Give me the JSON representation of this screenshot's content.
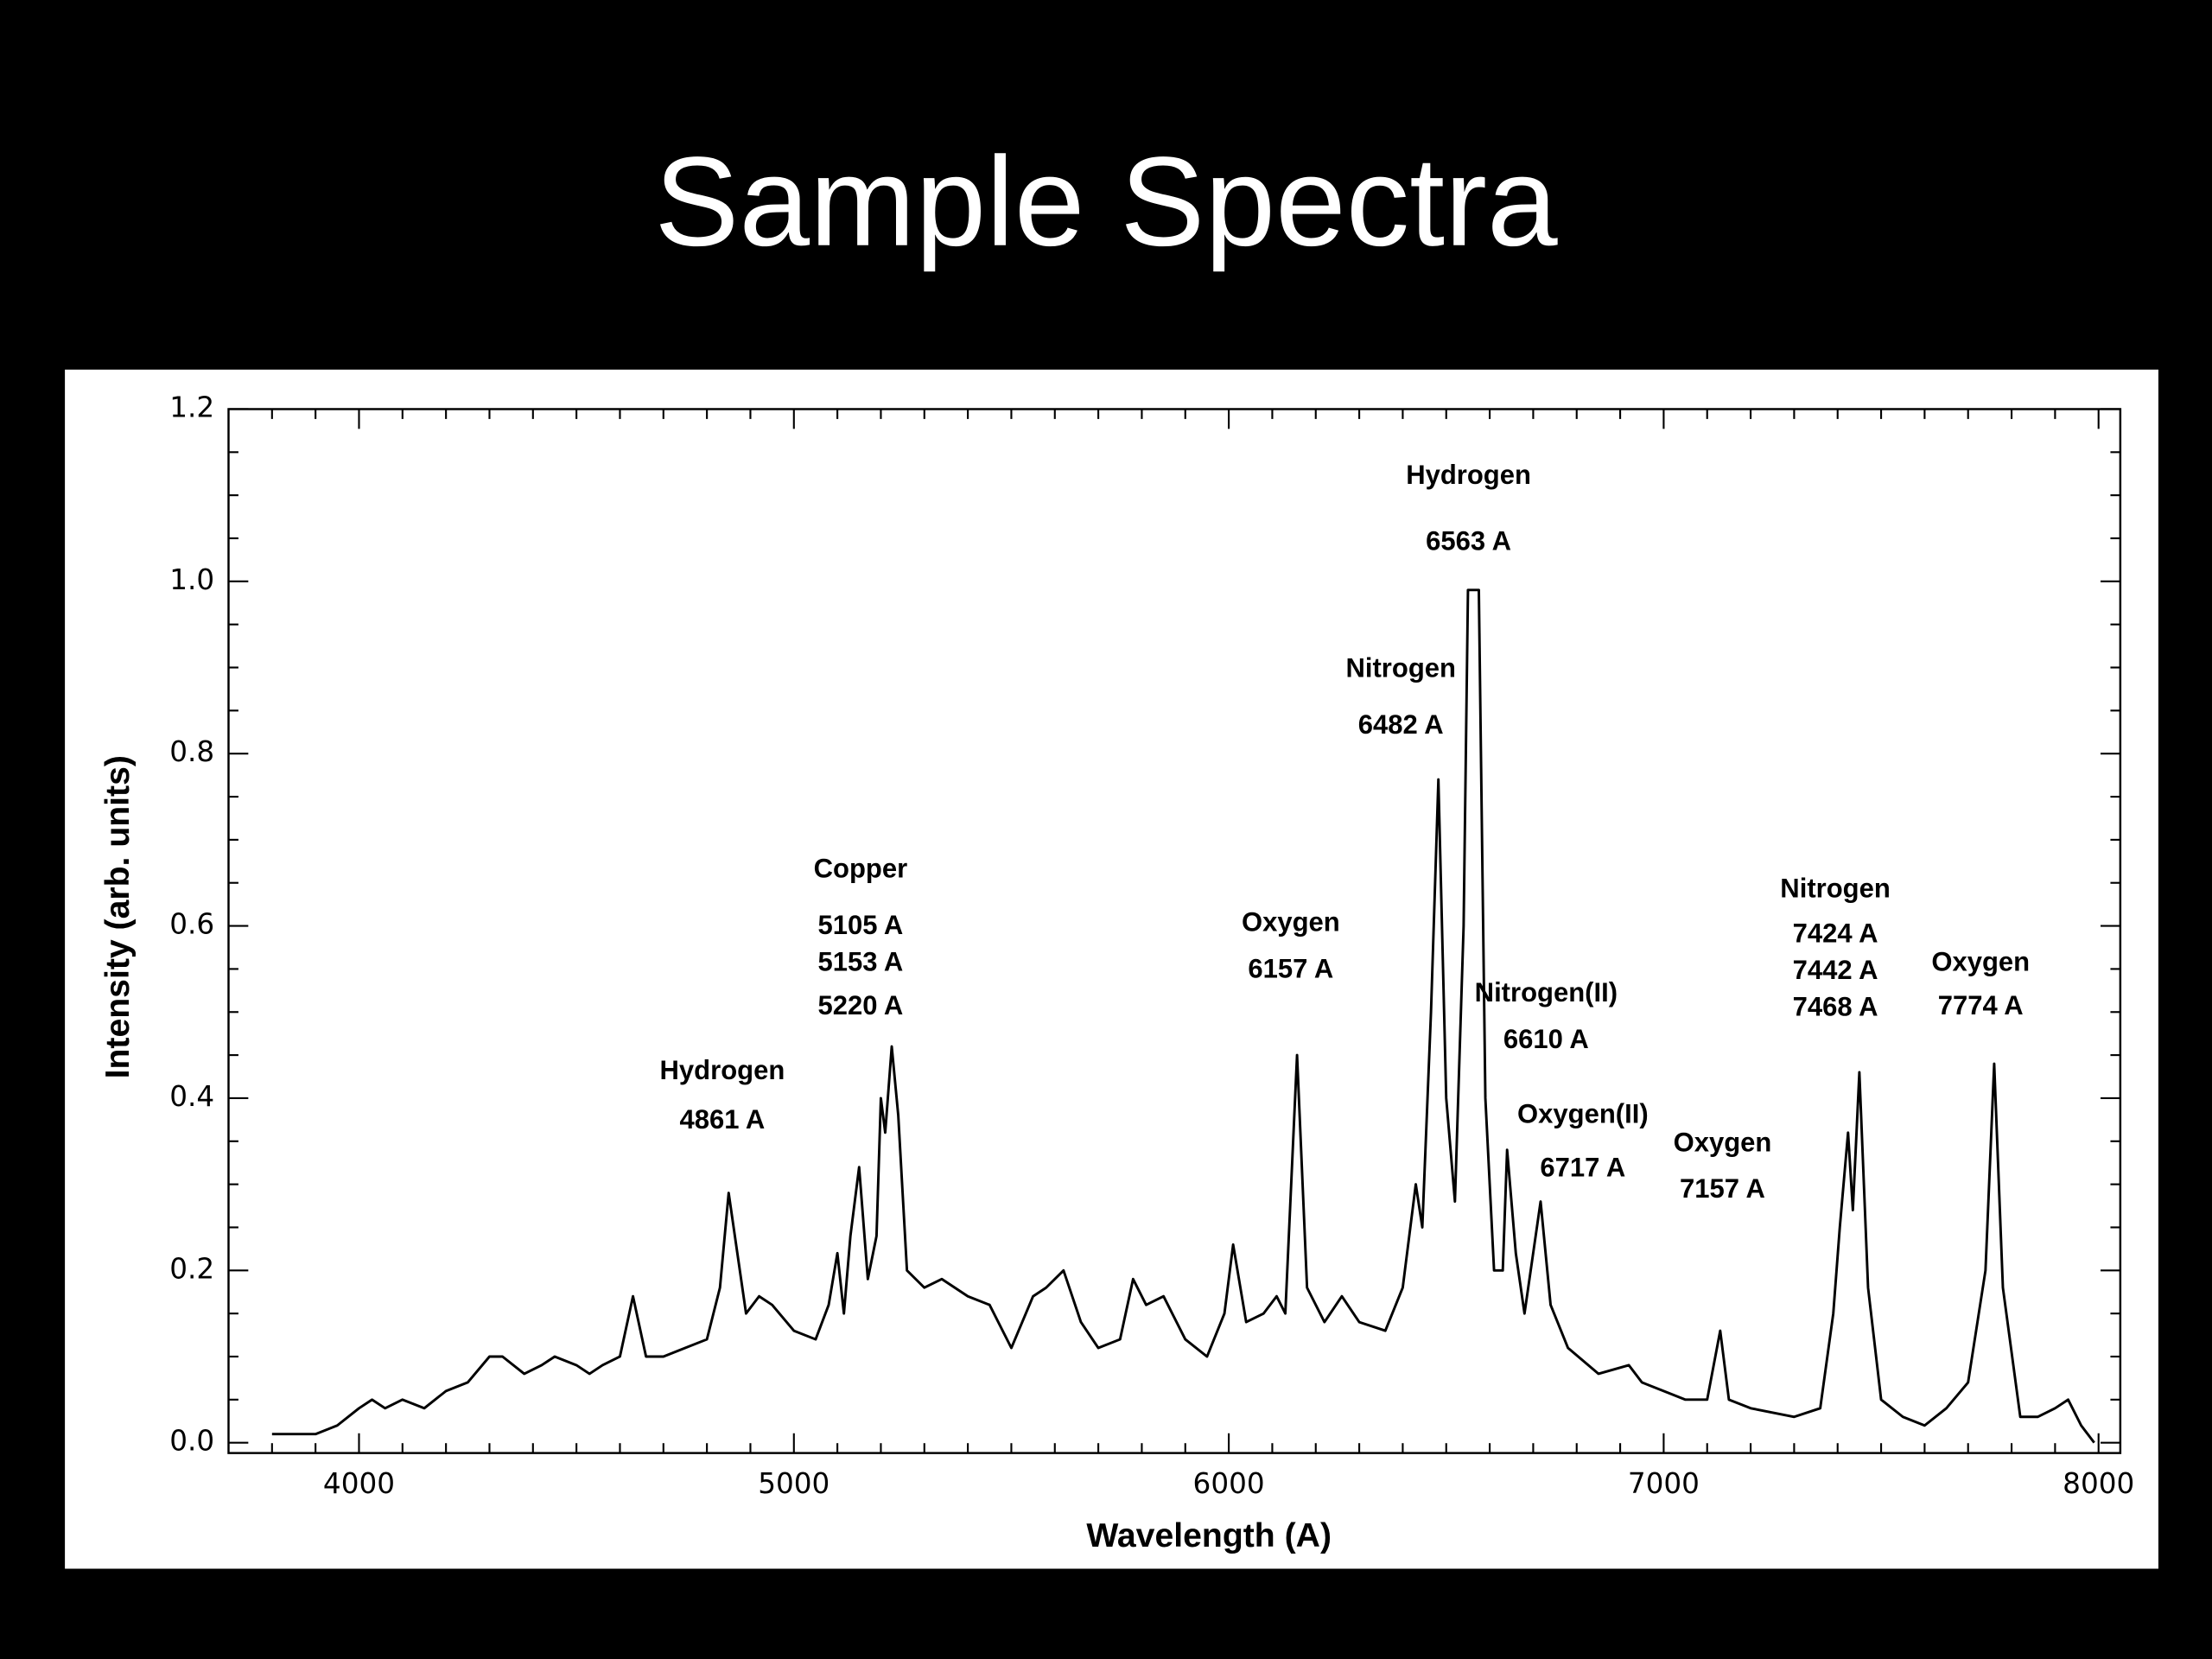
{
  "chart_data": {
    "type": "line",
    "title": "Sample Spectra",
    "xlabel": "Wavelength (A)",
    "ylabel": "Intensity (arb. units)",
    "color": "#000000",
    "xlim": [
      3700,
      8050
    ],
    "ylim": [
      -0.012,
      1.2
    ],
    "xticks": [
      4000,
      5000,
      6000,
      7000,
      8000
    ],
    "yticks": [
      {
        "value": 0,
        "label": "0.0"
      },
      0.2,
      0.4,
      0.6,
      0.8,
      {
        "value": 1,
        "label": "1.0"
      },
      1.2
    ],
    "xticks_minor": [
      3800,
      3900,
      4100,
      4200,
      4300,
      4400,
      4500,
      4600,
      4700,
      4800,
      4900,
      5100,
      5200,
      5300,
      5400,
      5500,
      5600,
      5700,
      5800,
      5900,
      6100,
      6200,
      6300,
      6400,
      6500,
      6600,
      6700,
      6800,
      6900,
      7100,
      7200,
      7300,
      7400,
      7500,
      7600,
      7700,
      7800,
      7900
    ],
    "yticks_minor": [
      0.05,
      0.1,
      0.15,
      0.25,
      0.3,
      0.35,
      0.45,
      0.5,
      0.55,
      0.65,
      0.7,
      0.75,
      0.85,
      0.9,
      0.95,
      1.05,
      1.1,
      1.15
    ],
    "x": [
      3800,
      3900,
      3950,
      4000,
      4030,
      4060,
      4100,
      4150,
      4200,
      4250,
      4300,
      4330,
      4380,
      4420,
      4450,
      4500,
      4530,
      4560,
      4600,
      4630,
      4660,
      4700,
      4750,
      4800,
      4830,
      4850,
      4870,
      4890,
      4920,
      4950,
      5000,
      5050,
      5080,
      5100,
      5115,
      5130,
      5150,
      5170,
      5190,
      5200,
      5210,
      5225,
      5240,
      5260,
      5300,
      5340,
      5400,
      5450,
      5500,
      5550,
      5580,
      5620,
      5660,
      5700,
      5750,
      5780,
      5810,
      5850,
      5900,
      5950,
      5990,
      6010,
      6040,
      6080,
      6110,
      6130,
      6157,
      6180,
      6220,
      6260,
      6300,
      6360,
      6400,
      6430,
      6445,
      6465,
      6482,
      6500,
      6520,
      6540,
      6550,
      6575,
      6590,
      6610,
      6630,
      6640,
      6660,
      6680,
      6717,
      6740,
      6780,
      6850,
      6920,
      6950,
      7000,
      7050,
      7100,
      7130,
      7150,
      7200,
      7300,
      7360,
      7390,
      7405,
      7424,
      7435,
      7450,
      7470,
      7500,
      7550,
      7600,
      7650,
      7700,
      7740,
      7760,
      7780,
      7820,
      7860,
      7900,
      7930,
      7960,
      7990
    ],
    "values": [
      0.01,
      0.01,
      0.02,
      0.04,
      0.05,
      0.04,
      0.05,
      0.04,
      0.06,
      0.07,
      0.1,
      0.1,
      0.08,
      0.09,
      0.1,
      0.09,
      0.08,
      0.09,
      0.1,
      0.17,
      0.1,
      0.1,
      0.11,
      0.12,
      0.18,
      0.29,
      0.22,
      0.15,
      0.17,
      0.16,
      0.13,
      0.12,
      0.16,
      0.22,
      0.15,
      0.24,
      0.32,
      0.19,
      0.24,
      0.4,
      0.36,
      0.46,
      0.38,
      0.2,
      0.18,
      0.19,
      0.17,
      0.16,
      0.11,
      0.17,
      0.18,
      0.2,
      0.14,
      0.11,
      0.12,
      0.19,
      0.16,
      0.17,
      0.12,
      0.1,
      0.15,
      0.23,
      0.14,
      0.15,
      0.17,
      0.15,
      0.45,
      0.18,
      0.14,
      0.17,
      0.14,
      0.13,
      0.18,
      0.3,
      0.25,
      0.5,
      0.77,
      0.4,
      0.28,
      0.6,
      0.99,
      0.99,
      0.4,
      0.2,
      0.2,
      0.34,
      0.22,
      0.15,
      0.28,
      0.16,
      0.11,
      0.08,
      0.09,
      0.07,
      0.06,
      0.05,
      0.05,
      0.13,
      0.05,
      0.04,
      0.03,
      0.04,
      0.15,
      0.25,
      0.36,
      0.27,
      0.43,
      0.18,
      0.05,
      0.03,
      0.02,
      0.04,
      0.07,
      0.2,
      0.44,
      0.18,
      0.03,
      0.03,
      0.04,
      0.05,
      0.02,
      0.0
    ],
    "annotations": [
      [
        "Hydrogen",
        "4861 A"
      ],
      [
        "Copper",
        "5105 A",
        "5153 A",
        "5220 A"
      ],
      [
        "Oxygen",
        "6157 A"
      ],
      [
        "Nitrogen",
        "6482 A"
      ],
      [
        "Hydrogen",
        "6563 A"
      ],
      [
        "Nitrogen(II)",
        "6610 A"
      ],
      [
        "Oxygen(II)",
        "6717 A"
      ],
      [
        "Oxygen",
        "7157 A"
      ],
      [
        "Nitrogen",
        "7424 A",
        "7442 A",
        "7468 A"
      ],
      [
        "Oxygen",
        "7774 A"
      ]
    ]
  }
}
